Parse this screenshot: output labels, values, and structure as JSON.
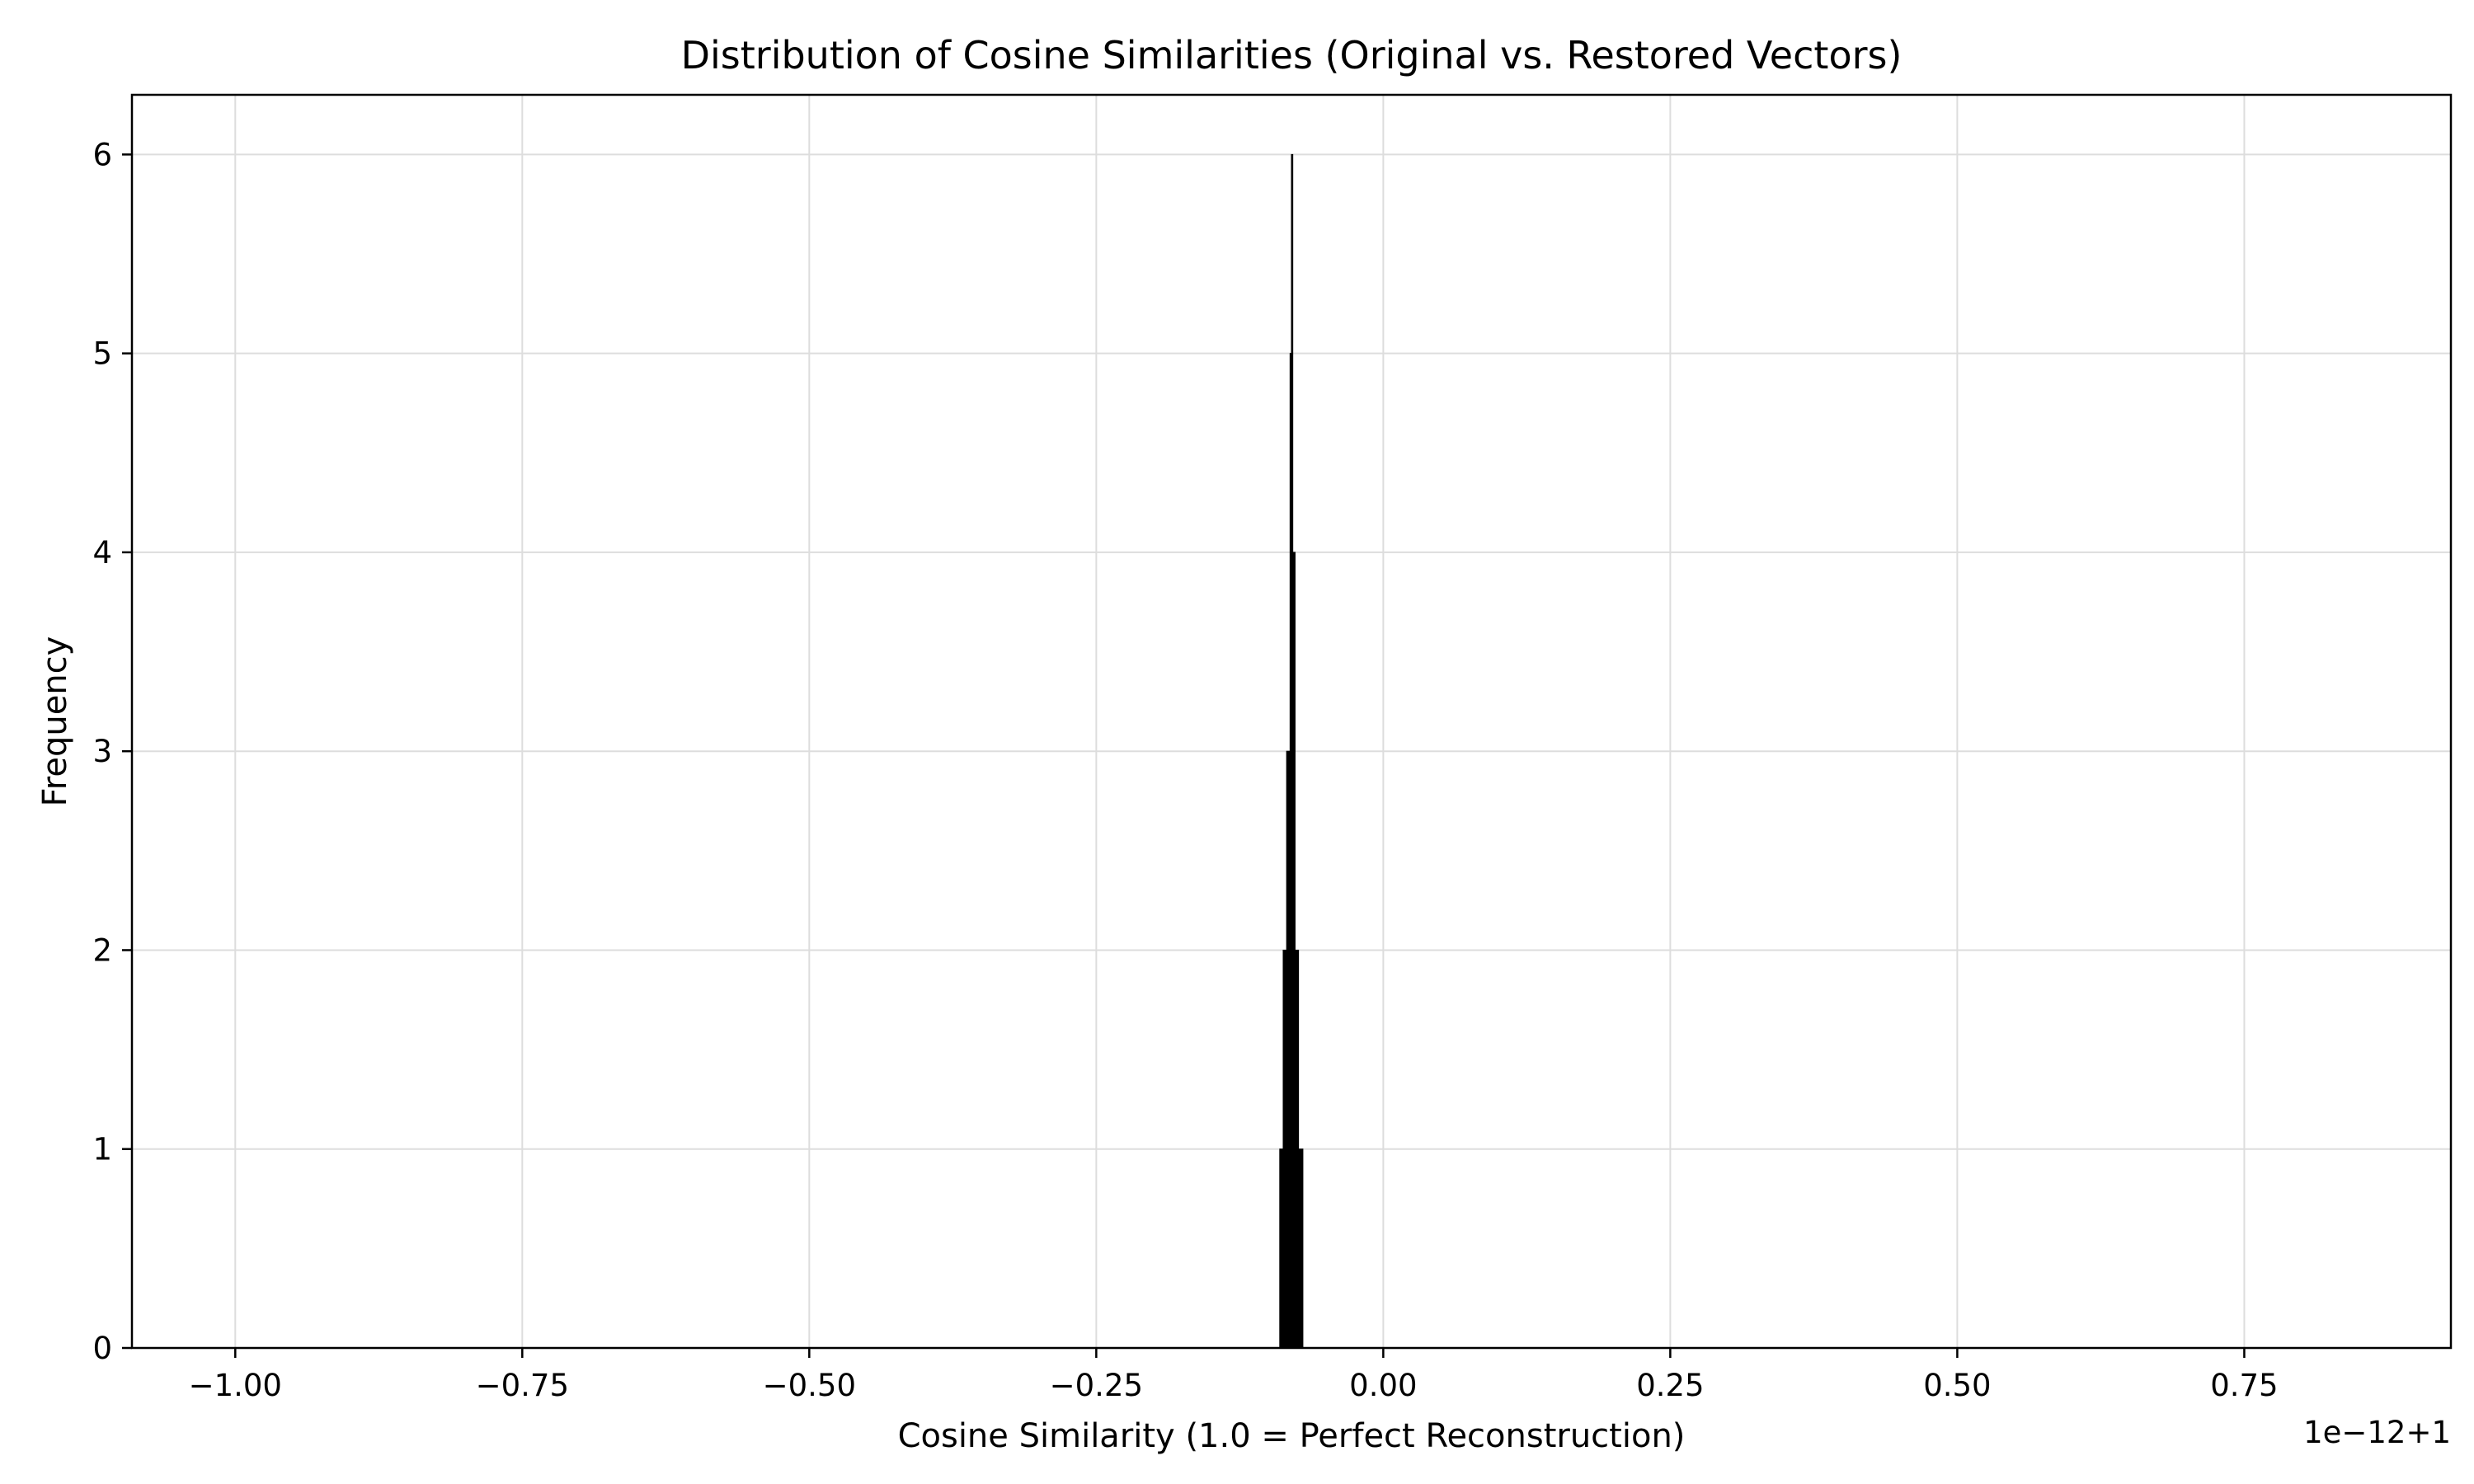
{
  "chart_data": {
    "type": "bar",
    "title": "Distribution of Cosine Similarities (Original vs. Restored Vectors)",
    "xlabel": "Cosine Similarity (1.0 = Perfect Reconstruction)",
    "ylabel": "Frequency",
    "x_offset_label": "1e−12+1",
    "xlim": [
      -1.09,
      0.93
    ],
    "ylim": [
      0,
      6.3
    ],
    "grid": true,
    "x_ticks": [
      {
        "value": -1.0,
        "label": "−1.00"
      },
      {
        "value": -0.75,
        "label": "−0.75"
      },
      {
        "value": -0.5,
        "label": "−0.50"
      },
      {
        "value": -0.25,
        "label": "−0.25"
      },
      {
        "value": 0.0,
        "label": "0.00"
      },
      {
        "value": 0.25,
        "label": "0.25"
      },
      {
        "value": 0.5,
        "label": "0.50"
      },
      {
        "value": 0.75,
        "label": "0.75"
      }
    ],
    "y_ticks": [
      {
        "value": 0,
        "label": "0"
      },
      {
        "value": 1,
        "label": "1"
      },
      {
        "value": 2,
        "label": "2"
      },
      {
        "value": 3,
        "label": "3"
      },
      {
        "value": 4,
        "label": "4"
      },
      {
        "value": 5,
        "label": "5"
      },
      {
        "value": 6,
        "label": "6"
      }
    ],
    "bins": [
      {
        "x0": -0.0902,
        "x1": -0.0872,
        "count": 1
      },
      {
        "x0": -0.0872,
        "x1": -0.0842,
        "count": 2
      },
      {
        "x0": -0.0842,
        "x1": -0.0812,
        "count": 3
      },
      {
        "x0": -0.0812,
        "x1": -0.08,
        "count": 5
      },
      {
        "x0": -0.08,
        "x1": -0.0788,
        "count": 6
      },
      {
        "x0": -0.0788,
        "x1": -0.0768,
        "count": 4
      },
      {
        "x0": -0.0768,
        "x1": -0.0738,
        "count": 2
      },
      {
        "x0": -0.0738,
        "x1": -0.07,
        "count": 1
      }
    ],
    "bar_color": "#000000",
    "grid_color": "#dddddd"
  }
}
